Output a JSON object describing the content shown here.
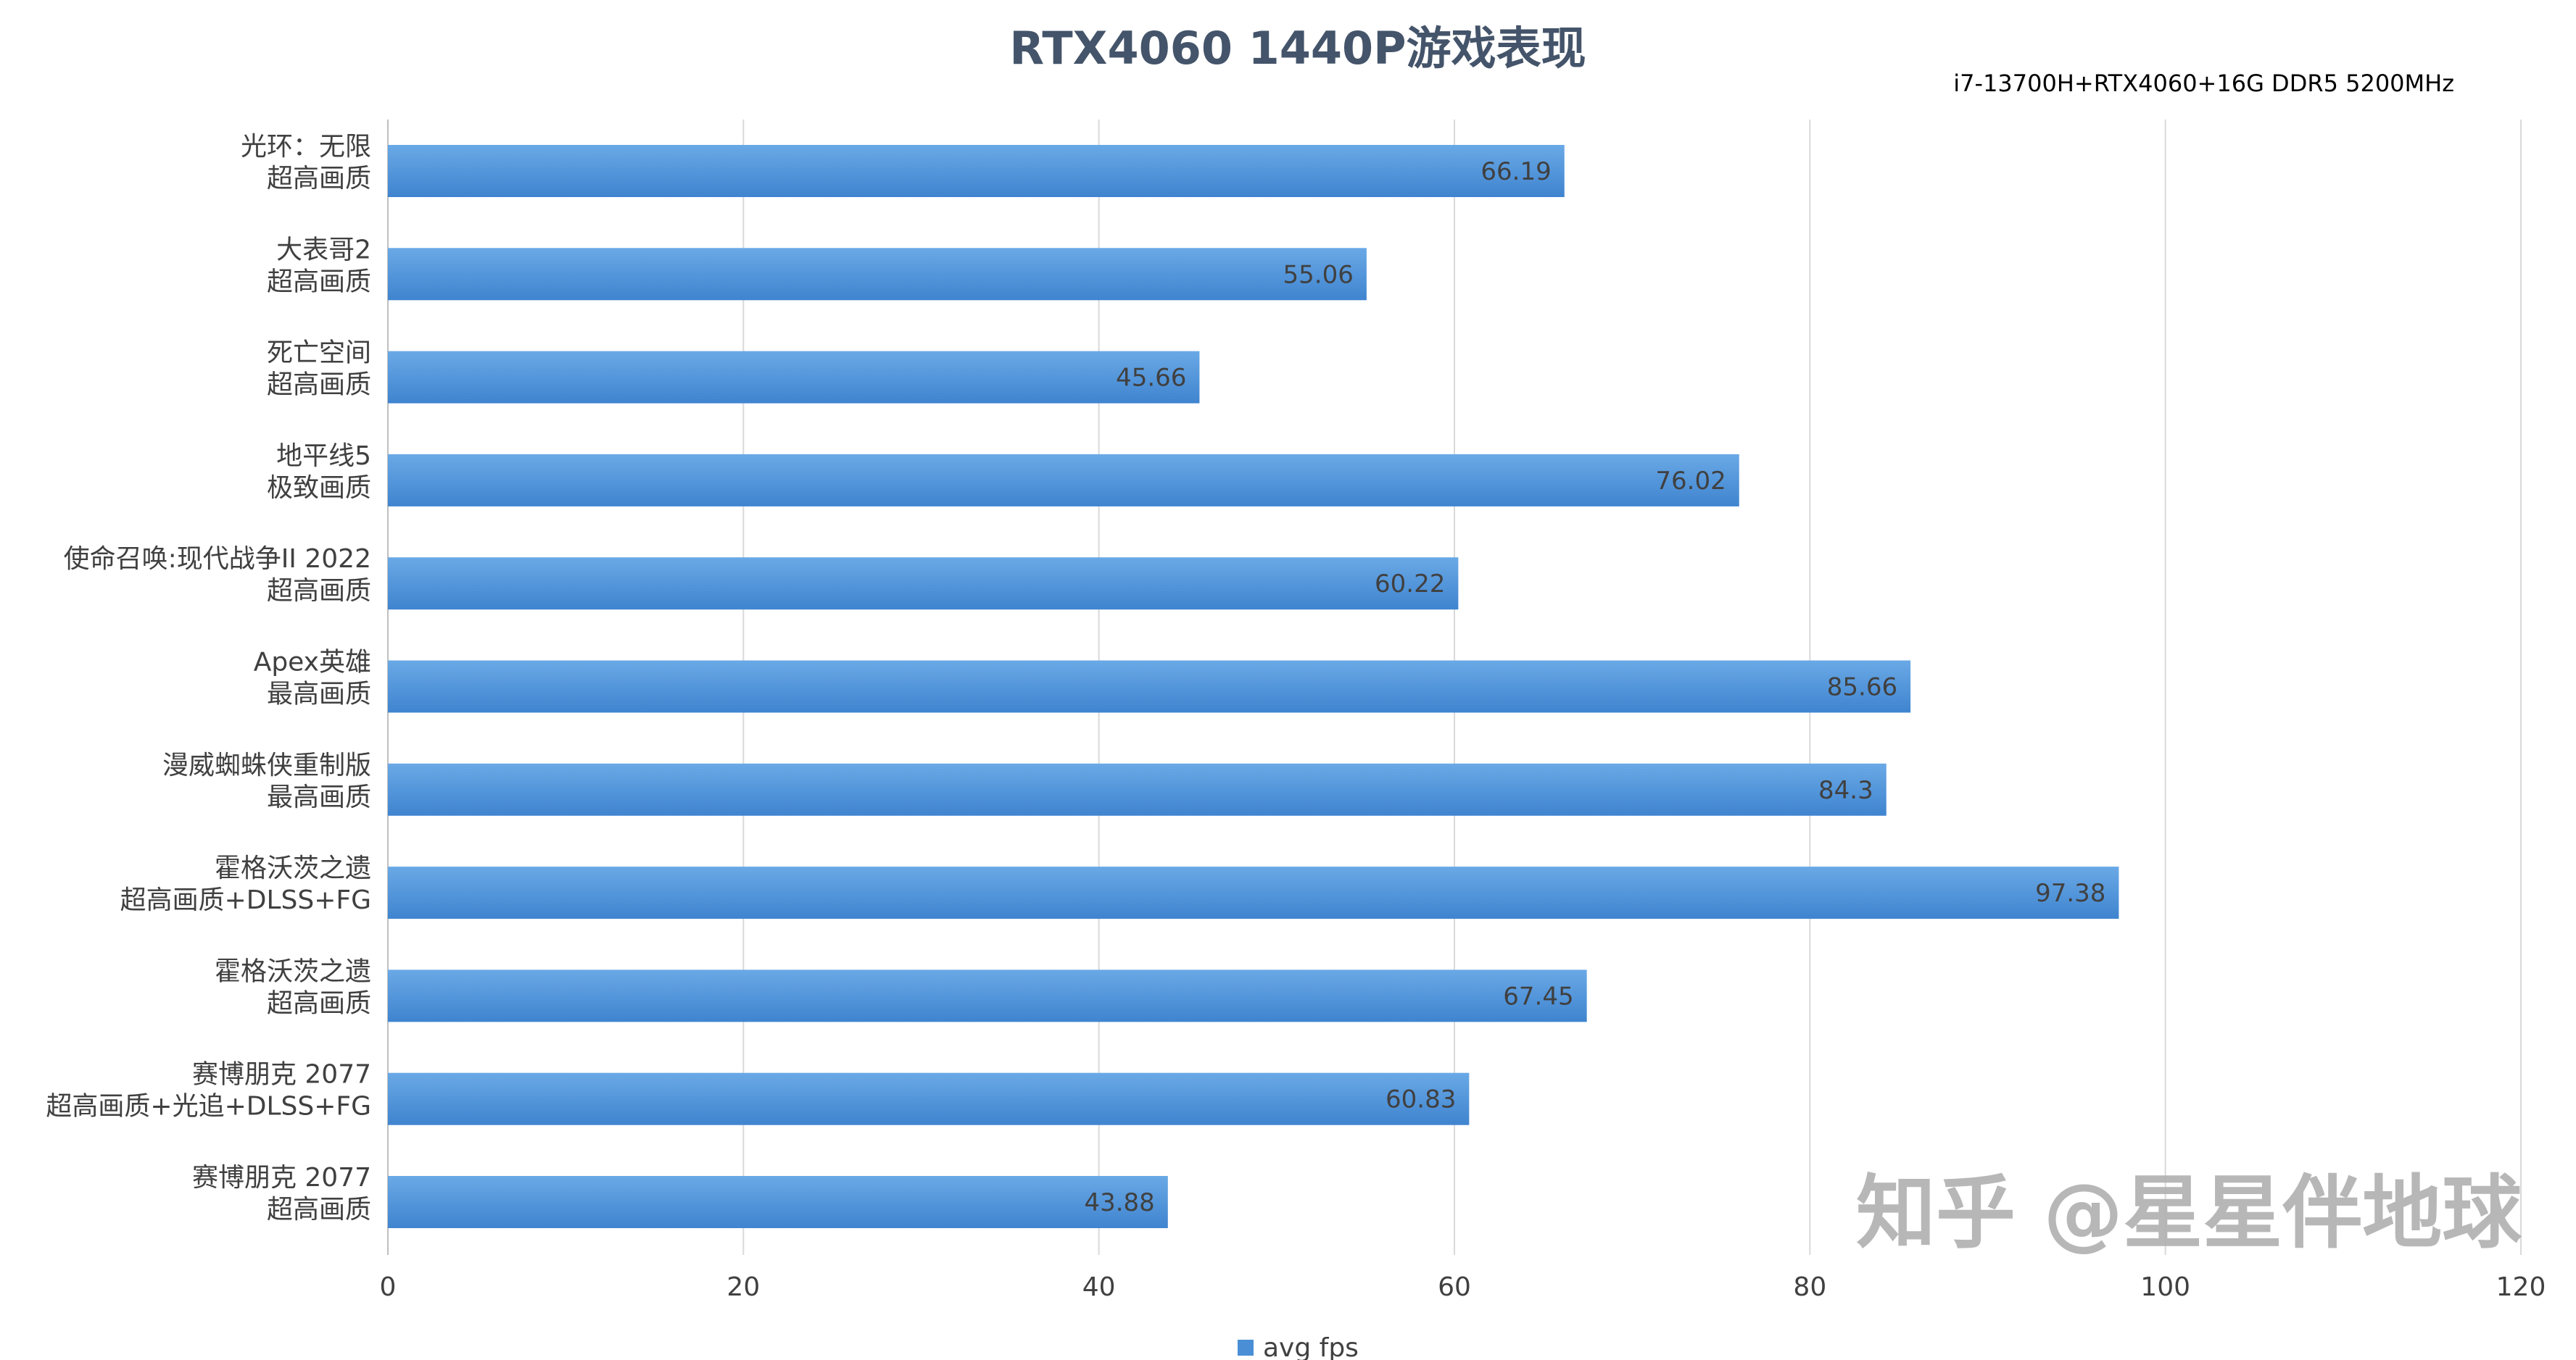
{
  "chart_data": {
    "type": "bar",
    "orientation": "horizontal",
    "title": "RTX4060 1440P游戏表现",
    "subtitle": "i7-13700H+RTX4060+16G DDR5 5200MHz",
    "categories": [
      [
        "光环：无限",
        "超高画质"
      ],
      [
        "大表哥2",
        "超高画质"
      ],
      [
        "死亡空间",
        "超高画质"
      ],
      [
        "地平线5",
        "极致画质"
      ],
      [
        "使命召唤:现代战争II 2022",
        "超高画质"
      ],
      [
        "Apex英雄",
        "最高画质"
      ],
      [
        "漫威蜘蛛侠重制版",
        "最高画质"
      ],
      [
        "霍格沃茨之遗",
        "超高画质+DLSS+FG"
      ],
      [
        "霍格沃茨之遗",
        "超高画质"
      ],
      [
        "赛博朋克 2077",
        "超高画质+光追+DLSS+FG"
      ],
      [
        "赛博朋克 2077",
        "超高画质"
      ]
    ],
    "series": [
      {
        "name": "avg fps",
        "color": "#4a8fd6",
        "values": [
          66.19,
          55.06,
          45.66,
          76.02,
          60.22,
          85.66,
          84.3,
          97.38,
          67.45,
          60.83,
          43.88
        ]
      }
    ],
    "xlim": [
      0,
      120
    ],
    "xticks": [
      "0",
      "20",
      "40",
      "60",
      "80",
      "100",
      "120"
    ],
    "grid": true,
    "legend_position": "bottom",
    "xlabel": "",
    "ylabel": ""
  },
  "watermark": "知乎 @星星伴地球"
}
